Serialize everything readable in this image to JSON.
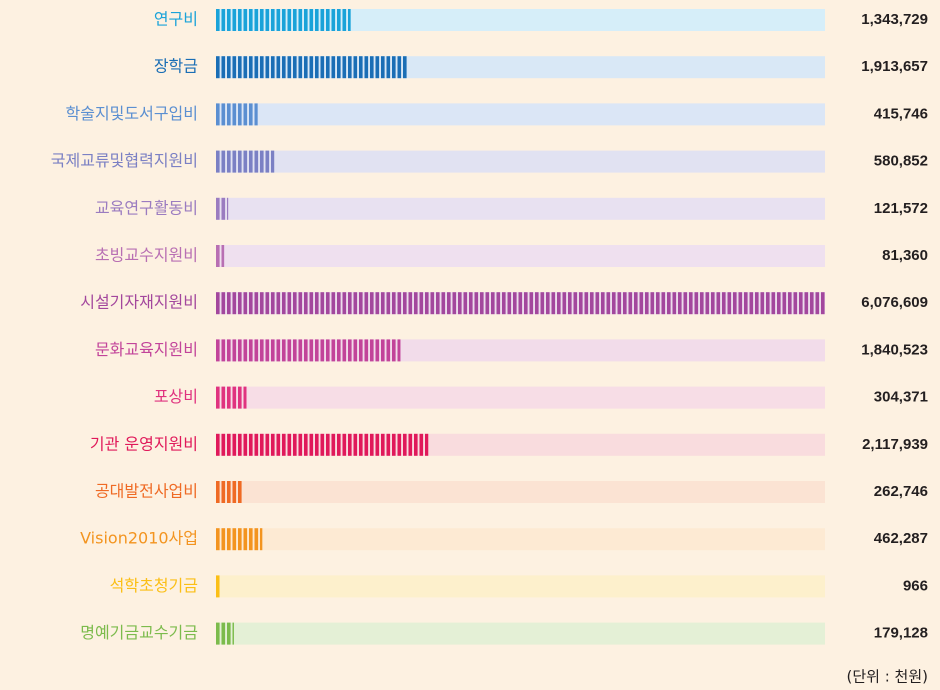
{
  "chart_data": {
    "type": "bar",
    "orientation": "horizontal",
    "categories": [
      "연구비",
      "장학금",
      "학술지및도서구입비",
      "국제교류및협력지원비",
      "교육연구활동비",
      "초빙교수지원비",
      "시설기자재지원비",
      "문화교육지원비",
      "포상비",
      "기관 운영지원비",
      "공대발전사업비",
      "Vision2010사업",
      "석학초청기금",
      "명예기금교수기금"
    ],
    "values": [
      1343729,
      1913657,
      415746,
      580852,
      121572,
      81360,
      6076609,
      1840523,
      304371,
      2117939,
      262746,
      462287,
      966,
      179128
    ],
    "value_labels": [
      "1,343,729",
      "1,913,657",
      "415,746",
      "580,852",
      "121,572",
      "81,360",
      "6,076,609",
      "1,840,523",
      "304,371",
      "2,117,939",
      "262,746",
      "462,287",
      "966",
      "179,128"
    ],
    "colors": [
      "#1aa3d9",
      "#1a6eb5",
      "#5b8fd1",
      "#7b80c4",
      "#9b7cc0",
      "#b86fb3",
      "#a3479d",
      "#c2449a",
      "#e0337f",
      "#e0195a",
      "#ef6a24",
      "#f3941f",
      "#fbbf16",
      "#7cbb4c"
    ],
    "track_colors": [
      "#d6eef9",
      "#d9e8f6",
      "#dbe6f6",
      "#e1e2f2",
      "#e8e1f1",
      "#efe0ef",
      "#ecdcec",
      "#f2dcea",
      "#f7dde6",
      "#f9dcde",
      "#fbe3d3",
      "#fdead3",
      "#fdf0cc",
      "#e4f0d6"
    ],
    "xlim": [
      0,
      6076609
    ],
    "unit_note": "(단위 : 천원)"
  }
}
